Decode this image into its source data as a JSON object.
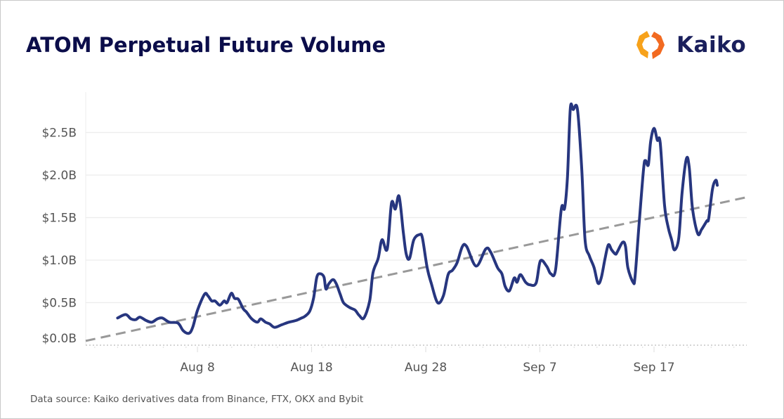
{
  "title": "ATOM Perpetual Future Volume",
  "logo": {
    "text": "Kaiko",
    "colors": [
      "#f7a21b",
      "#f26a21"
    ]
  },
  "source": "Data source: Kaiko derivatives data from Binance, FTX, OKX and Bybit",
  "chart_data": {
    "type": "line",
    "title": "ATOM Perpetual Future Volume",
    "xlabel": "",
    "ylabel": "",
    "x_format": "MM-DD HH (hour of day)",
    "xlim": [
      "07-29 05",
      "09-25 03"
    ],
    "ylim": [
      0,
      2.9
    ],
    "x_ticks": [
      {
        "label": "Aug 8",
        "date": "08-08 00"
      },
      {
        "label": "Aug 18",
        "date": "08-18 00"
      },
      {
        "label": "Aug 28",
        "date": "08-28 00"
      },
      {
        "label": "Sep 7",
        "date": "09-07 00"
      },
      {
        "label": "Sep 17",
        "date": "09-17 00"
      }
    ],
    "y_ticks": [
      {
        "label": "$0.0B",
        "value": 0
      },
      {
        "label": "$0.5B",
        "value": 0.5
      },
      {
        "label": "$1.0B",
        "value": 1.0
      },
      {
        "label": "$1.5B",
        "value": 1.5
      },
      {
        "label": "$2.0B",
        "value": 2.0
      },
      {
        "label": "$2.5B",
        "value": 2.5
      }
    ],
    "y_unit": "USD billions",
    "grid": true,
    "legend": "none",
    "series": [
      {
        "color": "#27367f",
        "style": "solid",
        "points": [
          [
            "08-01 00",
            0.32
          ],
          [
            "08-01 17",
            0.36
          ],
          [
            "08-02 04",
            0.31
          ],
          [
            "08-02 14",
            0.3
          ],
          [
            "08-02 23",
            0.33
          ],
          [
            "08-03 12",
            0.29
          ],
          [
            "08-04 00",
            0.27
          ],
          [
            "08-04 12",
            0.31
          ],
          [
            "08-04 22",
            0.32
          ],
          [
            "08-05 13",
            0.27
          ],
          [
            "08-06 07",
            0.26
          ],
          [
            "08-06 18",
            0.17
          ],
          [
            "08-07 06",
            0.14
          ],
          [
            "08-07 14",
            0.21
          ],
          [
            "08-08 00",
            0.41
          ],
          [
            "08-08 15",
            0.6
          ],
          [
            "08-08 22",
            0.58
          ],
          [
            "08-09 06",
            0.52
          ],
          [
            "08-09 13",
            0.52
          ],
          [
            "08-09 23",
            0.47
          ],
          [
            "08-10 08",
            0.52
          ],
          [
            "08-10 14",
            0.5
          ],
          [
            "08-10 23",
            0.61
          ],
          [
            "08-11 06",
            0.55
          ],
          [
            "08-11 14",
            0.54
          ],
          [
            "08-12 00",
            0.43
          ],
          [
            "08-12 07",
            0.39
          ],
          [
            "08-12 18",
            0.31
          ],
          [
            "08-13 06",
            0.27
          ],
          [
            "08-13 13",
            0.31
          ],
          [
            "08-13 23",
            0.27
          ],
          [
            "08-14 08",
            0.25
          ],
          [
            "08-14 18",
            0.21
          ],
          [
            "08-15 09",
            0.24
          ],
          [
            "08-16 00",
            0.27
          ],
          [
            "08-16 15",
            0.29
          ],
          [
            "08-17 03",
            0.32
          ],
          [
            "08-17 10",
            0.34
          ],
          [
            "08-17 20",
            0.4
          ],
          [
            "08-18 04",
            0.55
          ],
          [
            "08-18 11",
            0.8
          ],
          [
            "08-18 18",
            0.84
          ],
          [
            "08-19 02",
            0.8
          ],
          [
            "08-19 06",
            0.66
          ],
          [
            "08-19 12",
            0.72
          ],
          [
            "08-19 21",
            0.77
          ],
          [
            "08-20 04",
            0.72
          ],
          [
            "08-20 12",
            0.6
          ],
          [
            "08-20 19",
            0.5
          ],
          [
            "08-21 06",
            0.45
          ],
          [
            "08-21 13",
            0.43
          ],
          [
            "08-21 20",
            0.41
          ],
          [
            "08-22 04",
            0.35
          ],
          [
            "08-22 14",
            0.32
          ],
          [
            "08-23 02",
            0.52
          ],
          [
            "08-23 09",
            0.85
          ],
          [
            "08-23 20",
            1.02
          ],
          [
            "08-24 04",
            1.24
          ],
          [
            "08-24 15",
            1.13
          ],
          [
            "08-25 00",
            1.67
          ],
          [
            "08-25 08",
            1.6
          ],
          [
            "08-25 16",
            1.75
          ],
          [
            "08-26 01",
            1.32
          ],
          [
            "08-26 07",
            1.07
          ],
          [
            "08-26 14",
            1.02
          ],
          [
            "08-26 23",
            1.24
          ],
          [
            "08-27 11",
            1.3
          ],
          [
            "08-27 17",
            1.26
          ],
          [
            "08-28 03",
            0.91
          ],
          [
            "08-28 12",
            0.72
          ],
          [
            "08-29 01",
            0.5
          ],
          [
            "08-29 13",
            0.58
          ],
          [
            "08-29 23",
            0.83
          ],
          [
            "08-30 08",
            0.88
          ],
          [
            "08-30 18",
            0.97
          ],
          [
            "08-31 05",
            1.16
          ],
          [
            "08-31 14",
            1.16
          ],
          [
            "09-01 10",
            0.93
          ],
          [
            "09-02 06",
            1.13
          ],
          [
            "09-02 16",
            1.1
          ],
          [
            "09-03 07",
            0.91
          ],
          [
            "09-03 16",
            0.84
          ],
          [
            "09-03 23",
            0.69
          ],
          [
            "09-04 08",
            0.64
          ],
          [
            "09-04 18",
            0.79
          ],
          [
            "09-05 00",
            0.74
          ],
          [
            "09-05 07",
            0.83
          ],
          [
            "09-05 18",
            0.74
          ],
          [
            "09-06 03",
            0.71
          ],
          [
            "09-06 16",
            0.73
          ],
          [
            "09-07 01",
            0.99
          ],
          [
            "09-07 14",
            0.93
          ],
          [
            "09-07 23",
            0.84
          ],
          [
            "09-08 09",
            0.89
          ],
          [
            "09-08 21",
            1.6
          ],
          [
            "09-09 04",
            1.61
          ],
          [
            "09-09 10",
            1.98
          ],
          [
            "09-09 16",
            2.78
          ],
          [
            "09-09 22",
            2.77
          ],
          [
            "09-10 07",
            2.77
          ],
          [
            "09-10 16",
            2.07
          ],
          [
            "09-10 23",
            1.24
          ],
          [
            "09-11 08",
            1.05
          ],
          [
            "09-11 18",
            0.91
          ],
          [
            "09-12 02",
            0.73
          ],
          [
            "09-12 09",
            0.79
          ],
          [
            "09-12 17",
            1.02
          ],
          [
            "09-13 00",
            1.18
          ],
          [
            "09-13 07",
            1.12
          ],
          [
            "09-13 15",
            1.07
          ],
          [
            "09-13 19",
            1.1
          ],
          [
            "09-14 06",
            1.21
          ],
          [
            "09-14 12",
            1.16
          ],
          [
            "09-14 17",
            0.91
          ],
          [
            "09-15 04",
            0.74
          ],
          [
            "09-15 08",
            0.8
          ],
          [
            "09-15 16",
            1.38
          ],
          [
            "09-16 02",
            2.07
          ],
          [
            "09-16 06",
            2.17
          ],
          [
            "09-16 12",
            2.12
          ],
          [
            "09-16 17",
            2.4
          ],
          [
            "09-17 00",
            2.55
          ],
          [
            "09-17 07",
            2.41
          ],
          [
            "09-17 13",
            2.38
          ],
          [
            "09-17 22",
            1.65
          ],
          [
            "09-18 06",
            1.38
          ],
          [
            "09-18 13",
            1.24
          ],
          [
            "09-18 19",
            1.12
          ],
          [
            "09-19 04",
            1.26
          ],
          [
            "09-19 11",
            1.79
          ],
          [
            "09-19 20",
            2.19
          ],
          [
            "09-20 02",
            2.09
          ],
          [
            "09-20 09",
            1.6
          ],
          [
            "09-20 20",
            1.31
          ],
          [
            "09-21 04",
            1.36
          ],
          [
            "09-21 15",
            1.46
          ],
          [
            "09-21 19",
            1.49
          ],
          [
            "09-22 03",
            1.84
          ],
          [
            "09-22 10",
            1.94
          ],
          [
            "09-22 13",
            1.88
          ]
        ]
      },
      {
        "color": "#999999",
        "style": "dashed",
        "points": [
          [
            "07-29 05",
            0.05
          ],
          [
            "09-25 03",
            1.74
          ]
        ]
      }
    ]
  }
}
